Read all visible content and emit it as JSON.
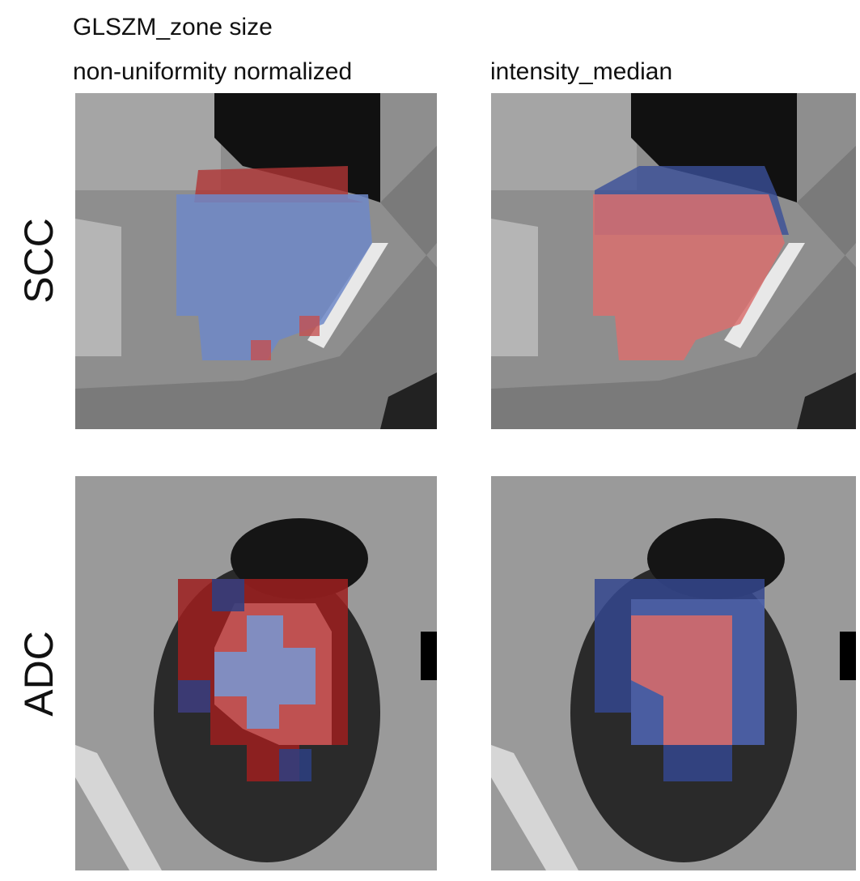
{
  "columns": [
    {
      "title_lines": [
        "GLSZM_zone size",
        "non-uniformity normalized"
      ]
    },
    {
      "title_lines": [
        "intensity_median"
      ]
    }
  ],
  "rows": [
    "SCC",
    "ADC"
  ]
}
